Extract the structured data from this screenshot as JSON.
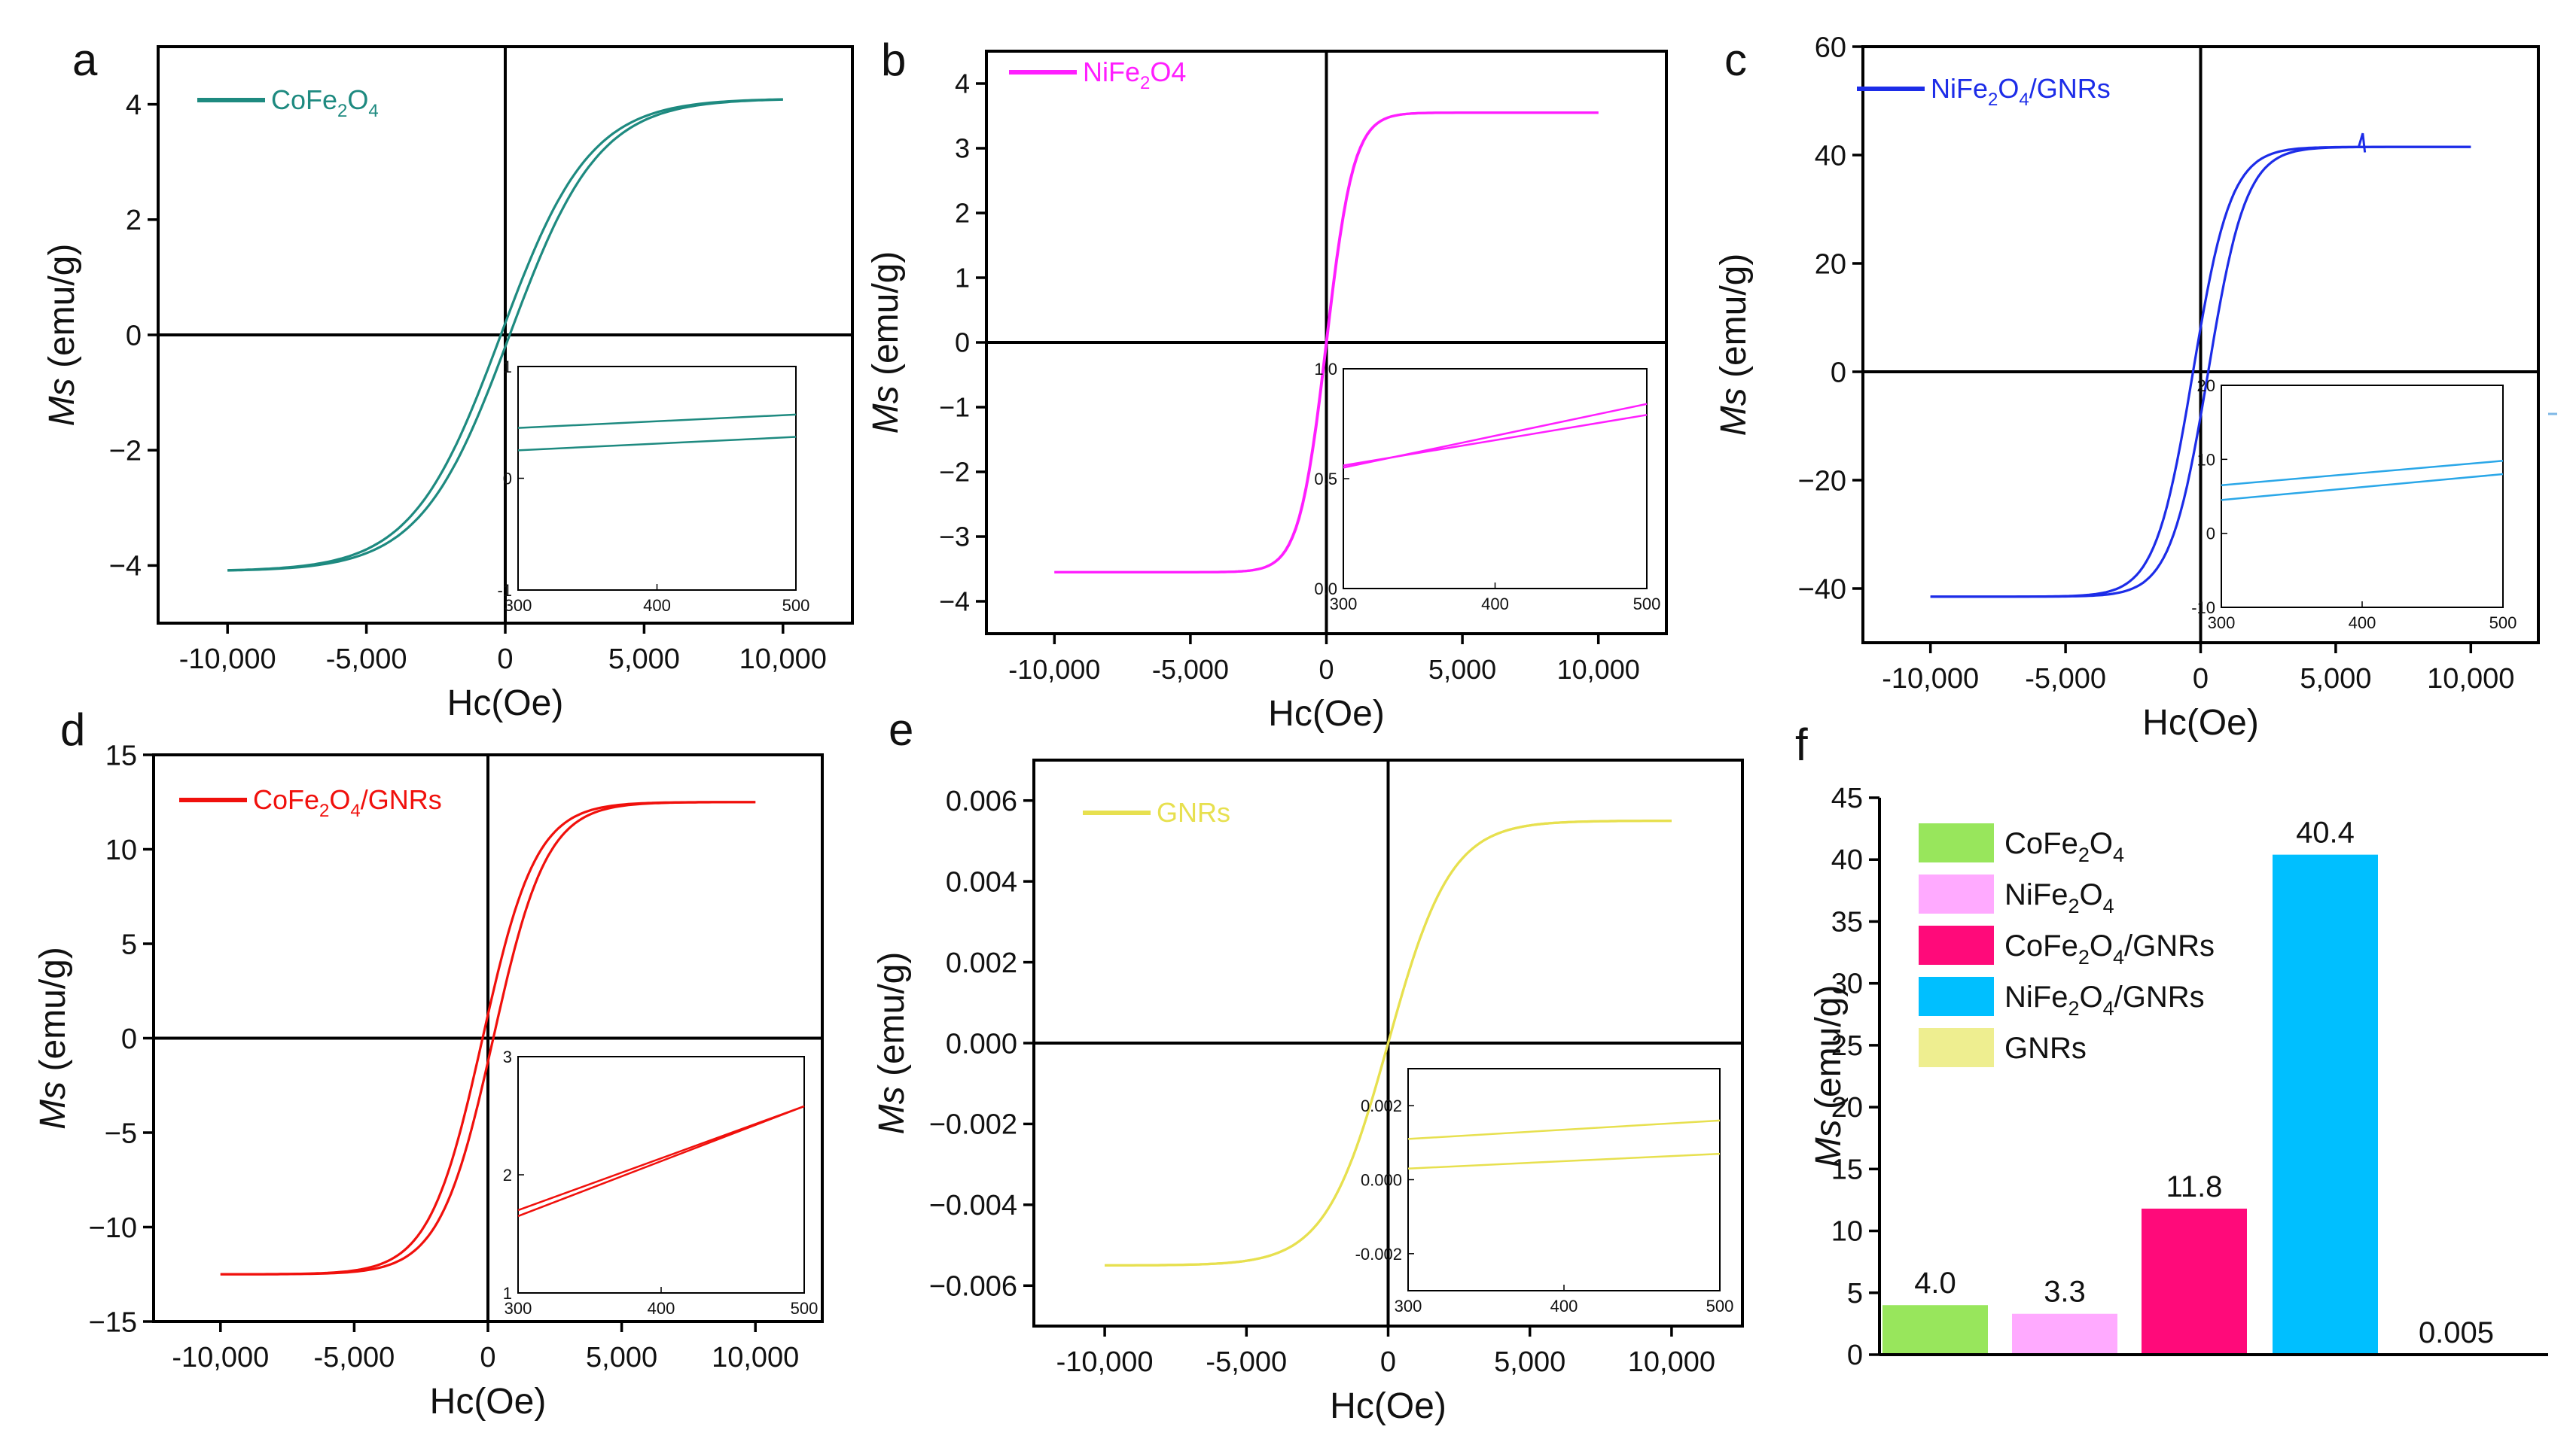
{
  "chart_data": [
    {
      "panel": "a",
      "type": "line",
      "legend": {
        "pre": "CoFe",
        "s1": "2",
        "mid": "O",
        "s2": "4",
        "post": ""
      },
      "color": "#1e8a80",
      "xlabel": "Hc(Oe)",
      "ylabel_italic": "Ms",
      "ylabel_rest": " (emu/g)",
      "xlim": [
        -12500,
        12500
      ],
      "ylim": [
        -5,
        5
      ],
      "xticks": [
        -10000,
        -5000,
        0,
        5000,
        10000
      ],
      "xtick_labels": [
        "-10,000",
        "-5,000",
        "0",
        "5,000",
        "10,000"
      ],
      "yticks": [
        -4,
        -2,
        0,
        2,
        4
      ],
      "ytick_labels": [
        "−4",
        "−2",
        "0",
        "2",
        "4"
      ],
      "curve": {
        "ms": 4.1,
        "k": 3200,
        "offset": 0.05
      },
      "inset": {
        "xlim": [
          300,
          500
        ],
        "ylim": [
          -1,
          1
        ],
        "xticks": [
          300,
          400,
          500
        ],
        "yticks": [
          -1,
          0,
          1
        ],
        "ytick_labels": [
          "-1",
          "0",
          "1"
        ],
        "lines": [
          [
            [
              300,
              0.45
            ],
            [
              500,
              0.57
            ]
          ],
          [
            [
              300,
              0.25
            ],
            [
              500,
              0.37
            ]
          ]
        ]
      }
    },
    {
      "panel": "b",
      "type": "line",
      "legend": {
        "pre": "NiFe",
        "s1": "2",
        "mid": "O4",
        "s2": "",
        "post": ""
      },
      "color": "#ff1eff",
      "xlabel": "Hc(Oe)",
      "ylabel_italic": "Ms",
      "ylabel_rest": " (emu/g)",
      "xlim": [
        -12500,
        12500
      ],
      "ylim": [
        -4.5,
        4.5
      ],
      "xticks": [
        -10000,
        -5000,
        0,
        5000,
        10000
      ],
      "xtick_labels": [
        "-10,000",
        "-5,000",
        "0",
        "5,000",
        "10,000"
      ],
      "yticks": [
        -4,
        -3,
        -2,
        -1,
        0,
        1,
        2,
        3,
        4
      ],
      "ytick_labels": [
        "−4",
        "−3",
        "−2",
        "−1",
        "0",
        "1",
        "2",
        "3",
        "4"
      ],
      "curve": {
        "ms": 3.55,
        "k": 1000,
        "offset": 0.01
      },
      "inset": {
        "xlim": [
          300,
          500
        ],
        "ylim": [
          0.0,
          1.0
        ],
        "xticks": [
          300,
          400,
          500
        ],
        "yticks": [
          0.0,
          0.5,
          1.0
        ],
        "ytick_labels": [
          "0.0",
          "0.5",
          "1.0"
        ],
        "lines": [
          [
            [
              300,
              0.55
            ],
            [
              500,
              0.84
            ]
          ],
          [
            [
              300,
              0.56
            ],
            [
              500,
              0.79
            ]
          ]
        ]
      }
    },
    {
      "panel": "c",
      "type": "line",
      "legend": {
        "pre": "NiFe",
        "s1": "2",
        "mid": "O",
        "s2": "4",
        "post": "/GNRs"
      },
      "color": "#1c2ce8",
      "xlabel": "Hc(Oe)",
      "ylabel_italic": "Ms",
      "ylabel_rest": " (emu/g)",
      "xlim": [
        -12500,
        12500
      ],
      "ylim": [
        -50,
        60
      ],
      "xticks": [
        -10000,
        -5000,
        0,
        5000,
        10000
      ],
      "xtick_labels": [
        "-10,000",
        "-5,000",
        "0",
        "5,000",
        "10,000"
      ],
      "yticks": [
        -40,
        -20,
        0,
        20,
        40,
        60
      ],
      "ytick_labels": [
        "−40",
        "−20",
        "0",
        "20",
        "40",
        "60"
      ],
      "curve": {
        "ms": 41.5,
        "k": 1400,
        "offset": 0.2
      },
      "inset": {
        "xlim": [
          300,
          500
        ],
        "ylim": [
          -10,
          20
        ],
        "xticks": [
          300,
          400,
          500
        ],
        "yticks": [
          -10,
          0,
          10,
          20
        ],
        "ytick_labels": [
          "-10",
          "0",
          "10",
          "20"
        ],
        "lines": [
          [
            [
              300,
              6.5
            ],
            [
              500,
              9.8
            ]
          ],
          [
            [
              300,
              4.5
            ],
            [
              500,
              8.0
            ]
          ]
        ]
      }
    },
    {
      "panel": "d",
      "type": "line",
      "legend": {
        "pre": "CoFe",
        "s1": "2",
        "mid": "O",
        "s2": "4",
        "post": "/GNRs"
      },
      "color": "#f0100c",
      "xlabel": "Hc(Oe)",
      "ylabel_italic": "Ms",
      "ylabel_rest": " (emu/g)",
      "xlim": [
        -12500,
        12500
      ],
      "ylim": [
        -15,
        15
      ],
      "xticks": [
        -10000,
        -5000,
        0,
        5000,
        10000
      ],
      "xtick_labels": [
        "-10,000",
        "-5,000",
        "0",
        "5,000",
        "10,000"
      ],
      "yticks": [
        -15,
        -10,
        -5,
        0,
        5,
        10,
        15
      ],
      "ytick_labels": [
        "−15",
        "−10",
        "−5",
        "0",
        "5",
        "10",
        "15"
      ],
      "curve": {
        "ms": 12.5,
        "k": 2000,
        "offset": 0.1
      },
      "inset": {
        "xlim": [
          300,
          500
        ],
        "ylim": [
          1,
          3
        ],
        "xticks": [
          300,
          400,
          500
        ],
        "yticks": [
          1,
          2,
          3
        ],
        "ytick_labels": [
          "1",
          "2",
          "3"
        ],
        "lines": [
          [
            [
              300,
              1.65
            ],
            [
              500,
              2.58
            ]
          ],
          [
            [
              300,
              1.7
            ],
            [
              500,
              2.58
            ]
          ]
        ]
      }
    },
    {
      "panel": "e",
      "type": "line",
      "legend": {
        "pre": "GNRs",
        "s1": "",
        "mid": "",
        "s2": "",
        "post": ""
      },
      "color": "#e7e04f",
      "xlabel": "Hc(Oe)",
      "ylabel_italic": "Ms",
      "ylabel_rest": " (emu/g)",
      "xlim": [
        -12500,
        12500
      ],
      "ylim": [
        -0.007,
        0.007
      ],
      "xticks": [
        -10000,
        -5000,
        0,
        5000,
        10000
      ],
      "xtick_labels": [
        "-10,000",
        "-5,000",
        "0",
        "5,000",
        "10,000"
      ],
      "yticks": [
        -0.006,
        -0.004,
        -0.002,
        0,
        0.002,
        0.004,
        0.006
      ],
      "ytick_labels": [
        "−0.006",
        "−0.004",
        "−0.002",
        "0.000",
        "0.002",
        "0.004",
        "0.006"
      ],
      "curve": {
        "ms": 0.0055,
        "k": 2200,
        "offset": 0.0002
      },
      "inset": {
        "xlim": [
          300,
          500
        ],
        "ylim": [
          -0.003,
          0.003
        ],
        "xticks": [
          300,
          400,
          500
        ],
        "yticks": [
          -0.002,
          0.0,
          0.002
        ],
        "ytick_labels": [
          "-0.002",
          "0.000",
          "0.002"
        ],
        "lines": [
          [
            [
              300,
              0.0011
            ],
            [
              500,
              0.0016
            ]
          ],
          [
            [
              300,
              0.0003
            ],
            [
              500,
              0.0007
            ]
          ]
        ]
      }
    },
    {
      "panel": "f",
      "type": "bar",
      "categories": [
        {
          "pre": "CoFe",
          "s1": "2",
          "mid": "O",
          "s2": "4",
          "post": ""
        },
        {
          "pre": "NiFe",
          "s1": "2",
          "mid": "O",
          "s2": "4",
          "post": ""
        },
        {
          "pre": "CoFe",
          "s1": "2",
          "mid": "O",
          "s2": "4",
          "post": "/GNRs"
        },
        {
          "pre": "NiFe",
          "s1": "2",
          "mid": "O",
          "s2": "4",
          "post": "/GNRs"
        },
        {
          "pre": "GNRs",
          "s1": "",
          "mid": "",
          "s2": "",
          "post": ""
        }
      ],
      "values": [
        4.0,
        3.3,
        11.8,
        40.4,
        0.005
      ],
      "value_labels": [
        "4.0",
        "3.3",
        "11.8",
        "40.4",
        "0.005"
      ],
      "colors": [
        "#98e65c",
        "#ffaaff",
        "#ff0a7a",
        "#00bfff",
        "#eeee90"
      ],
      "ylabel_italic": "Ms",
      "ylabel_rest": " (emu/g)",
      "ylim": [
        0,
        45
      ],
      "yticks": [
        0,
        5,
        10,
        15,
        20,
        25,
        30,
        35,
        40,
        45
      ],
      "ytick_labels": [
        "0",
        "5",
        "10",
        "15",
        "20",
        "25",
        "30",
        "35",
        "40",
        "45"
      ]
    }
  ]
}
